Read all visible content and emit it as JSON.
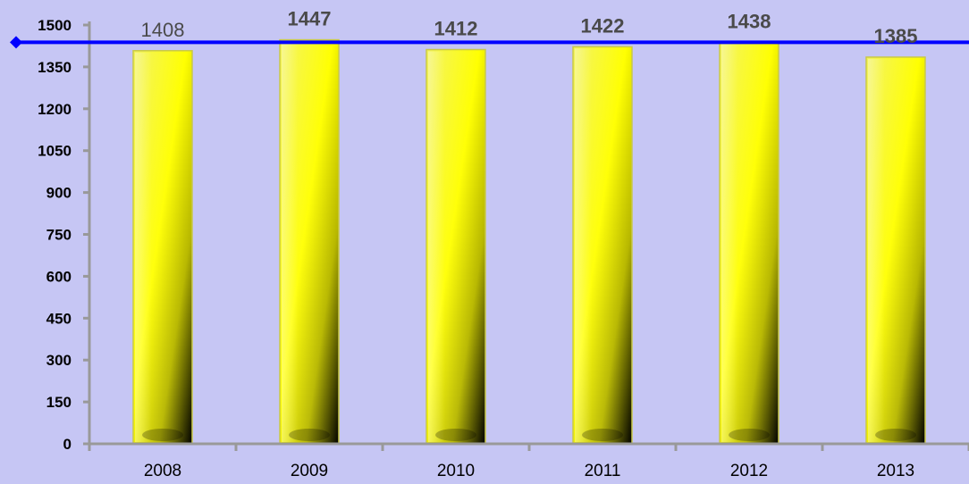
{
  "chart_data": {
    "type": "bar",
    "title": "",
    "xlabel": "",
    "ylabel": "",
    "categories": [
      "2008",
      "2009",
      "2010",
      "2011",
      "2012",
      "2013"
    ],
    "values": [
      1408,
      1447,
      1412,
      1422,
      1438,
      1385
    ],
    "data_labels": [
      "1408",
      "1447",
      "1412",
      "1422",
      "1438",
      "1385"
    ],
    "ylim": [
      0,
      1500
    ],
    "yticks": [
      0,
      150,
      300,
      450,
      600,
      750,
      900,
      1050,
      1200,
      1350,
      1500
    ],
    "reference_line": {
      "value": 1438,
      "color": "#0000ff"
    },
    "bar_color": "#ffff00",
    "background_color": "#c6c6f4",
    "axis_color": "#999999",
    "grid": false,
    "legend": "none"
  }
}
